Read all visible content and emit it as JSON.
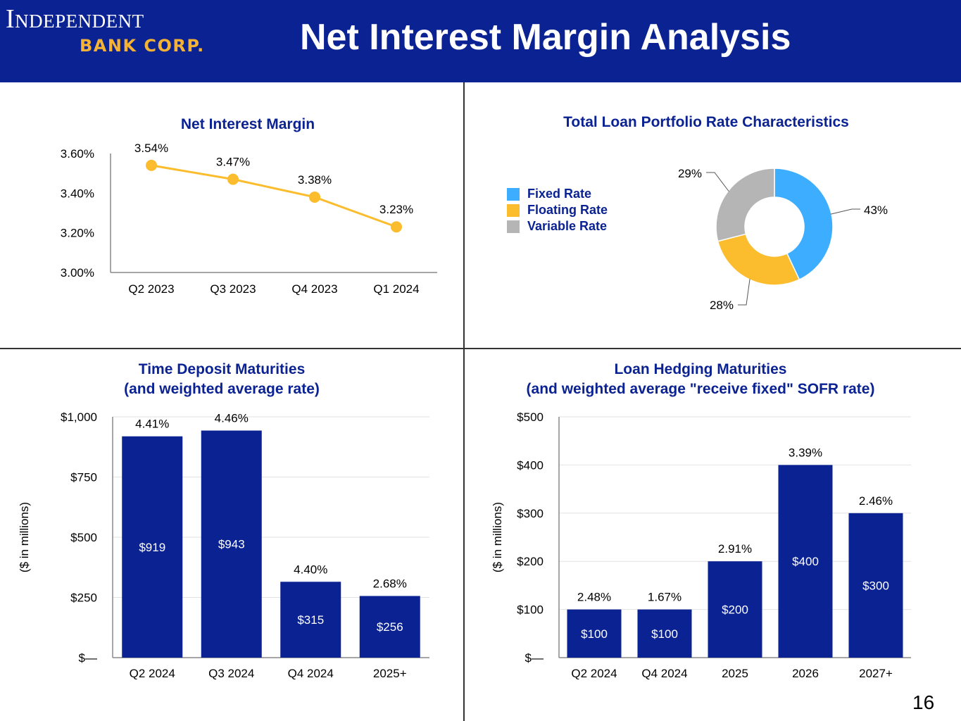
{
  "header": {
    "logo_line1": "Independent",
    "logo_line2": "BANK CORP.",
    "title": "Net Interest Margin Analysis",
    "background_color": "#0b2293",
    "logo_accent_color": "#f5b335"
  },
  "page_number": "16",
  "colors": {
    "title_blue": "#0b2293",
    "bar_navy": "#0b2293",
    "line_gold": "#fbbd2d",
    "fixed_blue": "#3daeff",
    "floating_gold": "#fbbd2d",
    "variable_gray": "#b5b5b5"
  },
  "chart_data": [
    {
      "type": "line",
      "title": "Net Interest Margin",
      "categories": [
        "Q2 2023",
        "Q3 2023",
        "Q4 2023",
        "Q1 2024"
      ],
      "values": [
        3.54,
        3.47,
        3.38,
        3.23
      ],
      "data_labels": [
        "3.54%",
        "3.47%",
        "3.38%",
        "3.23%"
      ],
      "yticks": [
        "3.60%",
        "3.40%",
        "3.20%",
        "3.00%"
      ],
      "ytick_values": [
        3.6,
        3.4,
        3.2,
        3.0
      ],
      "ylim": [
        3.0,
        3.6
      ],
      "grid": false
    },
    {
      "type": "pie",
      "title": "Total Loan Portfolio Rate Characteristics",
      "labels": [
        "Fixed Rate",
        "Floating Rate",
        "Variable Rate"
      ],
      "values": [
        43,
        28,
        29
      ],
      "data_labels": [
        "43%",
        "28%",
        "29%"
      ],
      "colors": [
        "#3daeff",
        "#fbbd2d",
        "#b5b5b5"
      ],
      "donut": true,
      "legend": "left"
    },
    {
      "type": "bar",
      "title": "Time Deposit Maturities",
      "subtitle": "(and weighted average rate)",
      "ylabel": "($ in millions)",
      "categories": [
        "Q2 2024",
        "Q3 2024",
        "Q4 2024",
        "2025+"
      ],
      "values": [
        919,
        943,
        315,
        256
      ],
      "value_labels": [
        "$919",
        "$943",
        "$315",
        "$256"
      ],
      "rate_labels": [
        "4.41%",
        "4.46%",
        "4.40%",
        "2.68%"
      ],
      "yticks": [
        "$1,000",
        "$750",
        "$500",
        "$250",
        "$—"
      ],
      "ytick_values": [
        1000,
        750,
        500,
        250,
        0
      ],
      "ylim": [
        0,
        1000
      ],
      "grid": true
    },
    {
      "type": "bar",
      "title": "Loan Hedging Maturities",
      "subtitle": "(and weighted average \"receive fixed\" SOFR rate)",
      "ylabel": "($ in millions)",
      "categories": [
        "Q2 2024",
        "Q4 2024",
        "2025",
        "2026",
        "2027+"
      ],
      "values": [
        100,
        100,
        200,
        400,
        300
      ],
      "value_labels": [
        "$100",
        "$100",
        "$200",
        "$400",
        "$300"
      ],
      "rate_labels": [
        "2.48%",
        "1.67%",
        "2.91%",
        "3.39%",
        "2.46%"
      ],
      "yticks": [
        "$500",
        "$400",
        "$300",
        "$200",
        "$100",
        "$—"
      ],
      "ytick_values": [
        500,
        400,
        300,
        200,
        100,
        0
      ],
      "ylim": [
        0,
        500
      ],
      "grid": true
    }
  ]
}
